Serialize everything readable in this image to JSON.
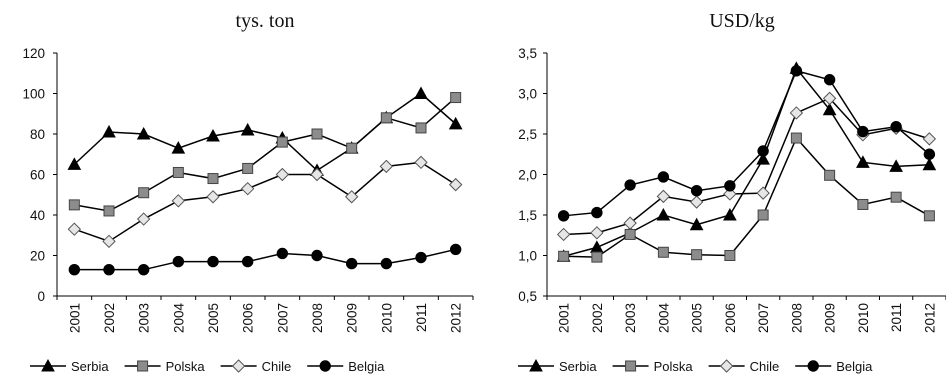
{
  "chart_data": [
    {
      "type": "line",
      "title": "tys. ton",
      "xlabel": "",
      "ylabel": "",
      "categories": [
        "2001",
        "2002",
        "2003",
        "2004",
        "2005",
        "2006",
        "2007",
        "2008",
        "2009",
        "2010",
        "2011",
        "2012"
      ],
      "ylim": [
        0,
        120
      ],
      "yticks": [
        "0",
        "20",
        "40",
        "60",
        "80",
        "100",
        "120"
      ],
      "grid": false,
      "legend_position": "bottom",
      "series": [
        {
          "name": "Serbia",
          "marker": "triangle",
          "values": [
            65,
            81,
            80,
            73,
            79,
            82,
            78,
            62,
            73,
            88,
            100,
            85
          ]
        },
        {
          "name": "Polska",
          "marker": "square",
          "values": [
            45,
            42,
            51,
            61,
            58,
            63,
            76,
            80,
            73,
            88,
            83,
            98
          ]
        },
        {
          "name": "Chile",
          "marker": "diamond",
          "values": [
            33,
            27,
            38,
            47,
            49,
            53,
            60,
            60,
            49,
            64,
            66,
            55
          ]
        },
        {
          "name": "Belgia",
          "marker": "circle",
          "values": [
            13,
            13,
            13,
            17,
            17,
            17,
            21,
            20,
            16,
            16,
            19,
            23
          ]
        }
      ]
    },
    {
      "type": "line",
      "title": "USD/kg",
      "xlabel": "",
      "ylabel": "",
      "categories": [
        "2001",
        "2002",
        "2003",
        "2004",
        "2005",
        "2006",
        "2007",
        "2008",
        "2009",
        "2010",
        "2011",
        "2012"
      ],
      "ylim": [
        0.5,
        3.5
      ],
      "yticks": [
        "0,5",
        "1,0",
        "1,5",
        "2,0",
        "2,5",
        "3,0",
        "3,5"
      ],
      "grid": false,
      "legend_position": "bottom",
      "series": [
        {
          "name": "Serbia",
          "marker": "triangle",
          "values": [
            0.99,
            1.1,
            1.28,
            1.5,
            1.38,
            1.5,
            2.19,
            3.31,
            2.8,
            2.15,
            2.1,
            2.12
          ]
        },
        {
          "name": "Polska",
          "marker": "square",
          "values": [
            0.99,
            0.98,
            1.26,
            1.04,
            1.01,
            1.0,
            1.5,
            2.45,
            1.99,
            1.63,
            1.72,
            1.49
          ]
        },
        {
          "name": "Chile",
          "marker": "diamond",
          "values": [
            1.26,
            1.28,
            1.4,
            1.73,
            1.66,
            1.76,
            1.77,
            2.76,
            2.94,
            2.49,
            2.57,
            2.44
          ]
        },
        {
          "name": "Belgia",
          "marker": "circle",
          "values": [
            1.49,
            1.53,
            1.87,
            1.97,
            1.8,
            1.86,
            2.29,
            3.28,
            3.17,
            2.53,
            2.59,
            2.25
          ]
        }
      ]
    }
  ]
}
